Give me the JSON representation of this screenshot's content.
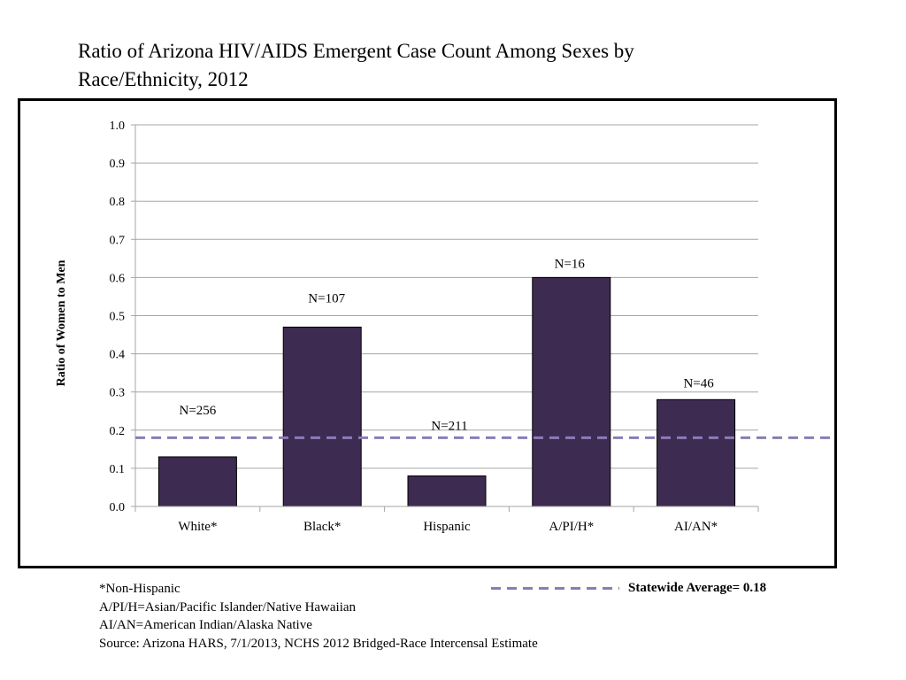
{
  "title": "Ratio of Arizona HIV/AIDS Emergent Case Count Among Sexes by Race/Ethnicity, 2012",
  "colors": {
    "bar": "#3d2b52",
    "average_line": "#8a7cb8",
    "grid": "#a6a6a6"
  },
  "chart_data": {
    "type": "bar",
    "title": "Ratio of Arizona HIV/AIDS Emergent Case Count Among Sexes by Race/Ethnicity, 2012",
    "xlabel": "",
    "ylabel": "Ratio of Women to Men",
    "categories": [
      "White*",
      "Black*",
      "Hispanic",
      "A/PI/H*",
      "AI/AN*"
    ],
    "values": [
      0.13,
      0.47,
      0.08,
      0.6,
      0.28
    ],
    "bar_labels": [
      "N=256",
      "N=107",
      "N=211",
      "N=16",
      "N=46"
    ],
    "ylim": [
      0,
      1.0
    ],
    "yticks": [
      "0.0",
      "0.1",
      "0.2",
      "0.3",
      "0.4",
      "0.5",
      "0.6",
      "0.7",
      "0.8",
      "0.9",
      "1.0"
    ],
    "grid": true,
    "reference_line": {
      "value": 0.18,
      "label": "Statewide Average= 0.18",
      "style": "dashed"
    }
  },
  "notes": [
    "*Non-Hispanic",
    "A/PI/H=Asian/Pacific Islander/Native Hawaiian",
    "AI/AN=American Indian/Alaska Native",
    "Source: Arizona HARS, 7/1/2013, NCHS 2012 Bridged-Race Intercensal Estimate"
  ]
}
